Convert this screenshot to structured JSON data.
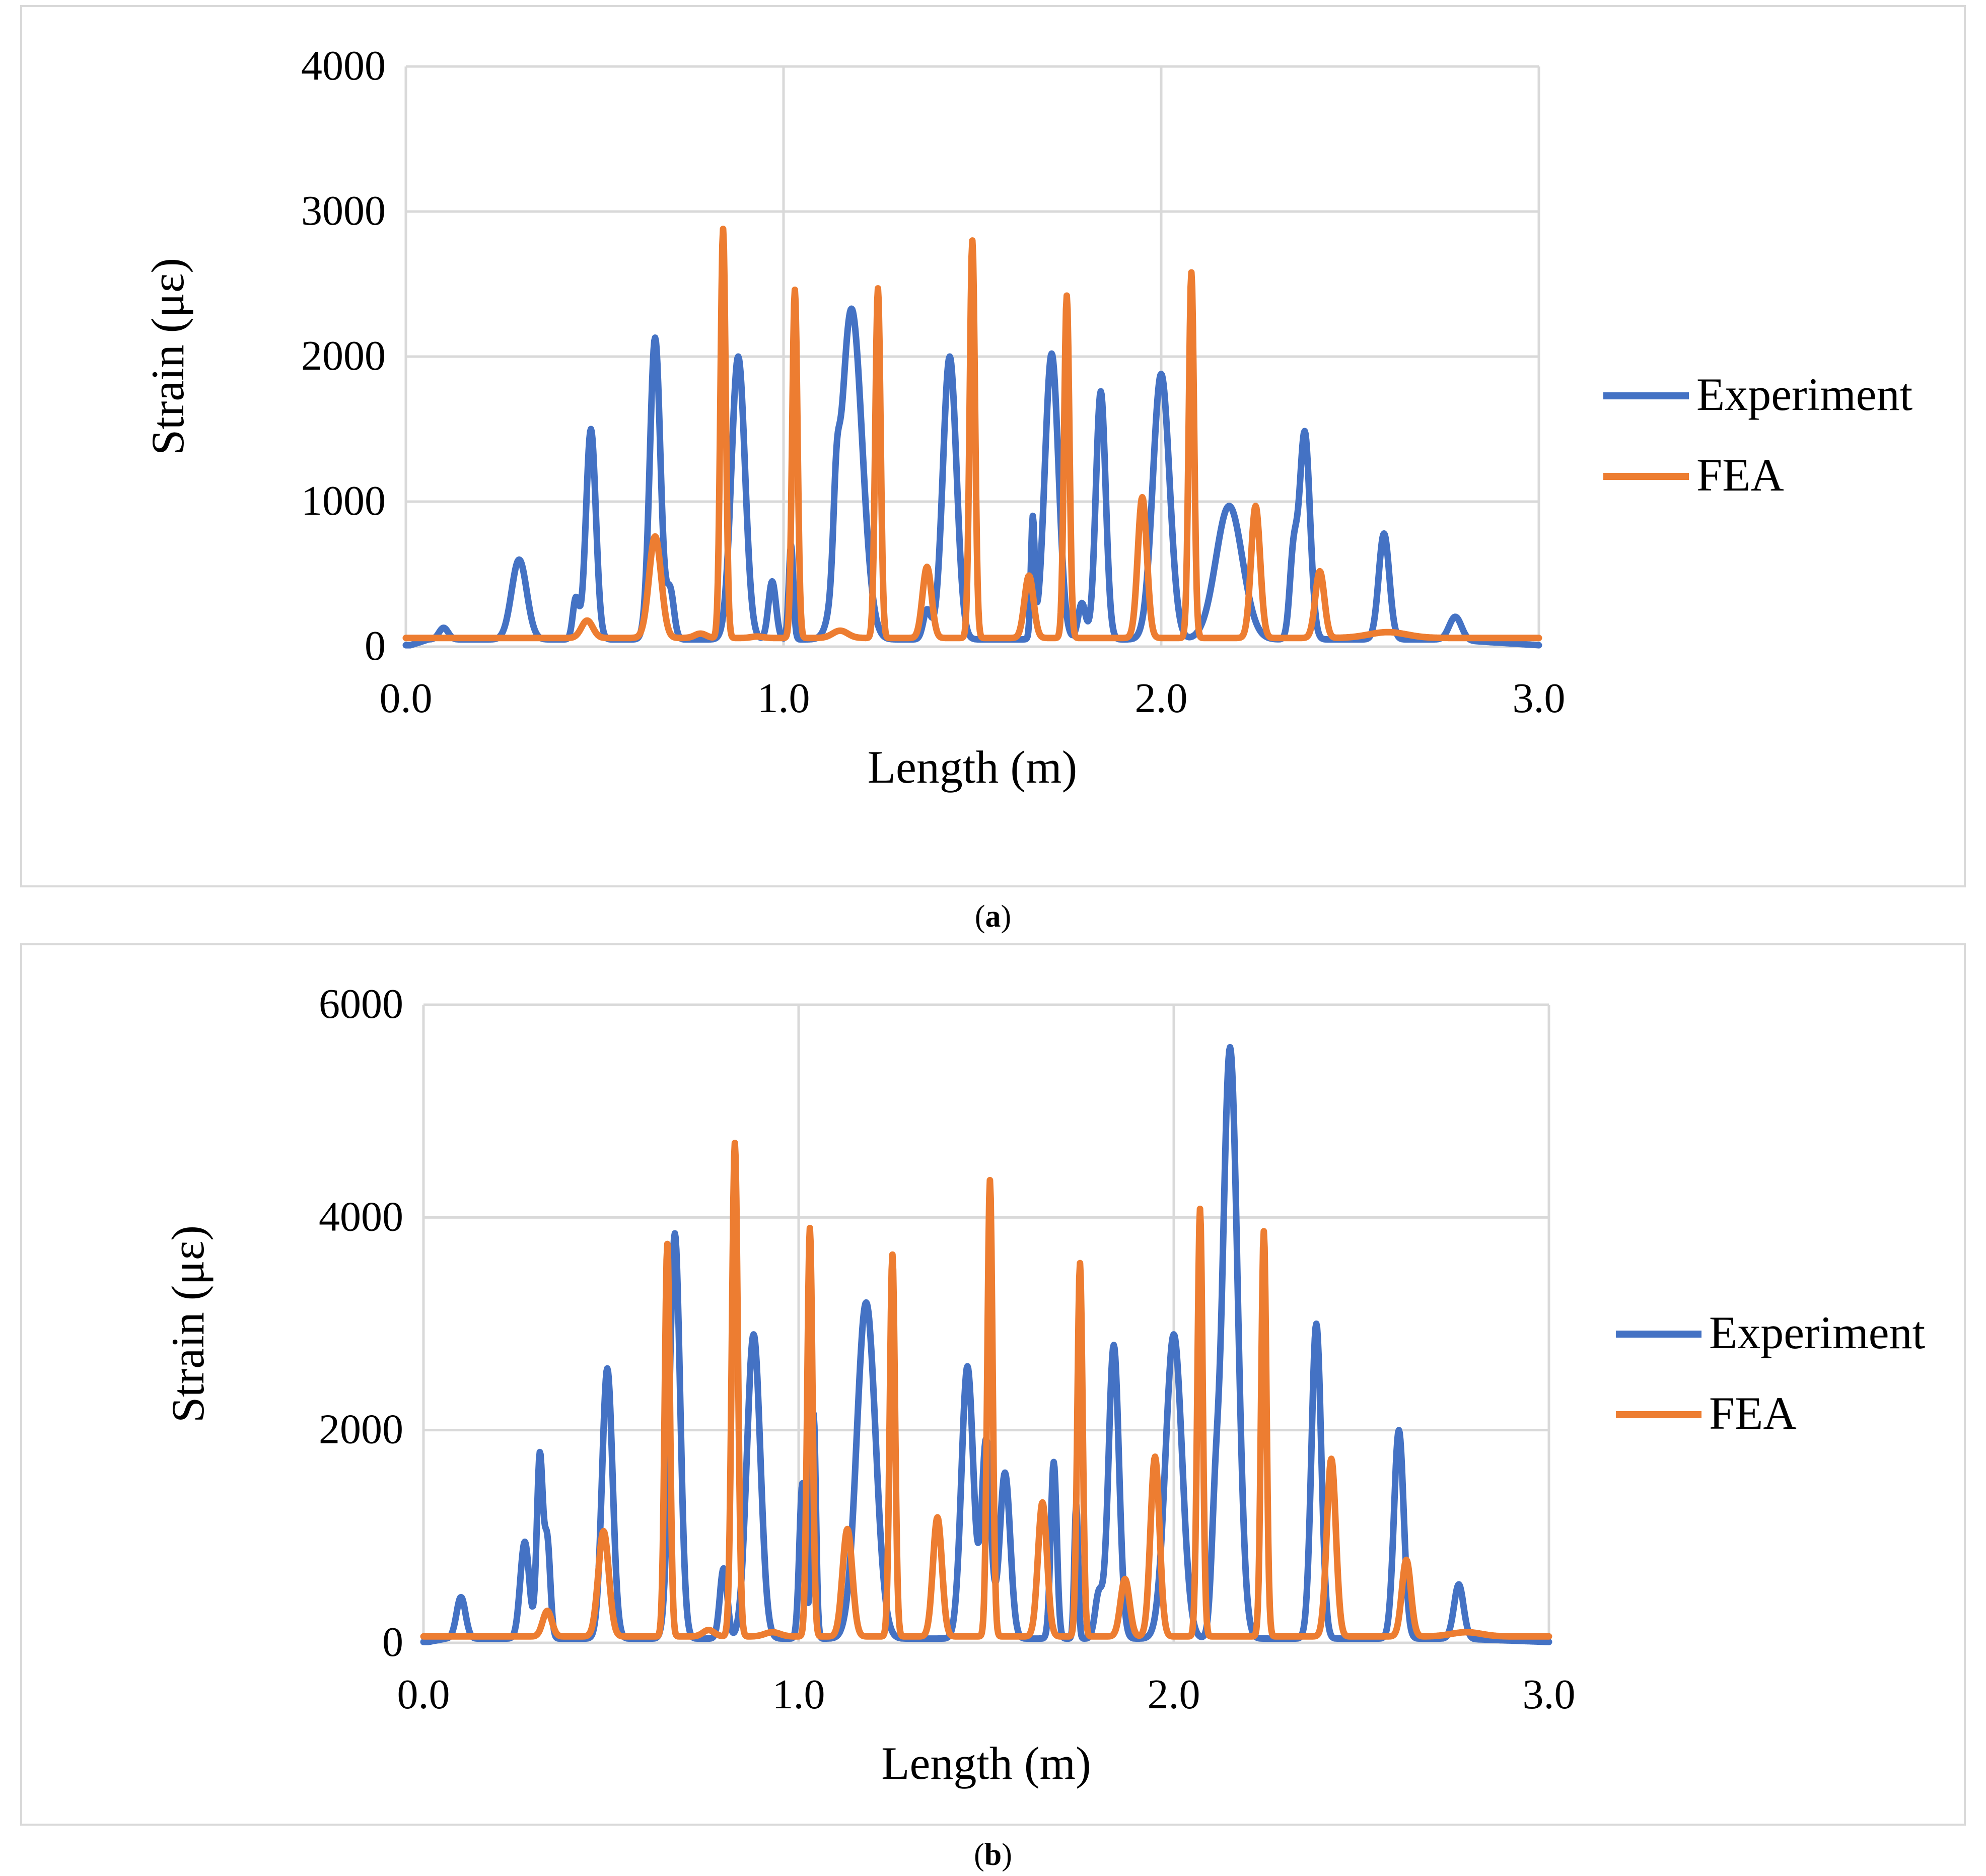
{
  "charts": [
    {
      "id": "a",
      "caption_letter": "a",
      "chart_data": {
        "type": "line",
        "title": "",
        "xlabel": "Length (m)",
        "ylabel": "Strain (με)",
        "xlim": [
          0,
          3
        ],
        "ylim": [
          0,
          4000
        ],
        "xticks": [
          0,
          1,
          2,
          3
        ],
        "xtick_labels": [
          "0.0",
          "1.0",
          "2.0",
          "3.0"
        ],
        "yticks": [
          0,
          1000,
          2000,
          3000,
          4000
        ],
        "ytick_labels": [
          "0",
          "1000",
          "2000",
          "3000",
          "4000"
        ],
        "grid": true,
        "legend_position": "right",
        "series": [
          {
            "name": "Experiment",
            "color": "#4472c4",
            "baseline": 50,
            "peaks": [
              [
                0.1,
                130,
                0.012
              ],
              [
                0.3,
                600,
                0.02
              ],
              [
                0.45,
                330,
                0.008
              ],
              [
                0.49,
                1500,
                0.013
              ],
              [
                0.66,
                2130,
                0.014
              ],
              [
                0.7,
                380,
                0.01
              ],
              [
                0.88,
                2000,
                0.018
              ],
              [
                0.97,
                450,
                0.01
              ],
              [
                1.02,
                700,
                0.006
              ],
              [
                1.14,
                540,
                0.008
              ],
              [
                1.18,
                2330,
                0.028
              ],
              [
                1.44,
                2000,
                0.018
              ],
              [
                1.38,
                250,
                0.01
              ],
              [
                1.66,
                860,
                0.005
              ],
              [
                1.71,
                2020,
                0.018
              ],
              [
                1.84,
                1760,
                0.013
              ],
              [
                1.79,
                300,
                0.01
              ],
              [
                2.0,
                1880,
                0.022
              ],
              [
                2.18,
                970,
                0.035
              ],
              [
                2.35,
                600,
                0.01
              ],
              [
                2.38,
                1480,
                0.014
              ],
              [
                2.59,
                780,
                0.014
              ],
              [
                2.78,
                220,
                0.016
              ]
            ]
          },
          {
            "name": "FEA",
            "color": "#ed7d31",
            "baseline": 60,
            "peaks": [
              [
                0.48,
                180,
                0.015
              ],
              [
                0.66,
                760,
                0.016
              ],
              [
                0.78,
                90,
                0.015
              ],
              [
                0.84,
                2880,
                0.007
              ],
              [
                0.93,
                70,
                0.015
              ],
              [
                1.03,
                2460,
                0.007
              ],
              [
                1.15,
                110,
                0.02
              ],
              [
                1.25,
                2470,
                0.007
              ],
              [
                1.38,
                550,
                0.012
              ],
              [
                1.5,
                2800,
                0.007
              ],
              [
                1.65,
                490,
                0.012
              ],
              [
                1.75,
                2420,
                0.007
              ],
              [
                1.95,
                1030,
                0.012
              ],
              [
                2.08,
                2580,
                0.007
              ],
              [
                2.25,
                970,
                0.012
              ],
              [
                2.42,
                520,
                0.012
              ],
              [
                2.6,
                100,
                0.05
              ]
            ]
          }
        ]
      }
    },
    {
      "id": "b",
      "caption_letter": "b",
      "chart_data": {
        "type": "line",
        "title": "",
        "xlabel": "Length (m)",
        "ylabel": "Strain (με)",
        "xlim": [
          0,
          3
        ],
        "ylim": [
          0,
          6000
        ],
        "xticks": [
          0,
          1,
          2,
          3
        ],
        "xtick_labels": [
          "0.0",
          "1.0",
          "2.0",
          "3.0"
        ],
        "yticks": [
          0,
          2000,
          4000,
          6000
        ],
        "ytick_labels": [
          "0",
          "2000",
          "4000",
          "6000"
        ],
        "grid": true,
        "legend_position": "right",
        "series": [
          {
            "name": "Experiment",
            "color": "#4472c4",
            "baseline": 40,
            "peaks": [
              [
                0.1,
                430,
                0.012
              ],
              [
                0.27,
                950,
                0.012
              ],
              [
                0.31,
                1750,
                0.008
              ],
              [
                0.33,
                950,
                0.008
              ],
              [
                0.49,
                2580,
                0.014
              ],
              [
                0.67,
                3850,
                0.014
              ],
              [
                0.8,
                700,
                0.01
              ],
              [
                0.88,
                2900,
                0.018
              ],
              [
                1.01,
                1500,
                0.008
              ],
              [
                1.04,
                2150,
                0.006
              ],
              [
                1.18,
                3200,
                0.025
              ],
              [
                1.45,
                2600,
                0.016
              ],
              [
                1.5,
                1900,
                0.012
              ],
              [
                1.55,
                1600,
                0.014
              ],
              [
                1.68,
                1700,
                0.008
              ],
              [
                1.74,
                1300,
                0.005
              ],
              [
                1.84,
                2800,
                0.014
              ],
              [
                1.8,
                450,
                0.01
              ],
              [
                2.0,
                2900,
                0.022
              ],
              [
                2.11,
                900,
                0.01
              ],
              [
                2.15,
                5600,
                0.02
              ],
              [
                2.38,
                3000,
                0.013
              ],
              [
                2.6,
                2000,
                0.013
              ],
              [
                2.76,
                550,
                0.013
              ]
            ]
          },
          {
            "name": "FEA",
            "color": "#ed7d31",
            "baseline": 60,
            "peaks": [
              [
                0.33,
                300,
                0.012
              ],
              [
                0.48,
                1050,
                0.014
              ],
              [
                0.65,
                3750,
                0.007
              ],
              [
                0.76,
                120,
                0.015
              ],
              [
                0.83,
                4700,
                0.008
              ],
              [
                0.93,
                100,
                0.02
              ],
              [
                1.03,
                3900,
                0.007
              ],
              [
                1.13,
                1070,
                0.013
              ],
              [
                1.25,
                3650,
                0.007
              ],
              [
                1.37,
                1180,
                0.012
              ],
              [
                1.51,
                4350,
                0.007
              ],
              [
                1.65,
                1320,
                0.012
              ],
              [
                1.75,
                3570,
                0.007
              ],
              [
                1.87,
                600,
                0.012
              ],
              [
                1.95,
                1750,
                0.012
              ],
              [
                2.07,
                4080,
                0.007
              ],
              [
                2.24,
                3870,
                0.007
              ],
              [
                2.42,
                1730,
                0.012
              ],
              [
                2.62,
                780,
                0.012
              ],
              [
                2.78,
                100,
                0.04
              ]
            ]
          }
        ]
      }
    }
  ]
}
